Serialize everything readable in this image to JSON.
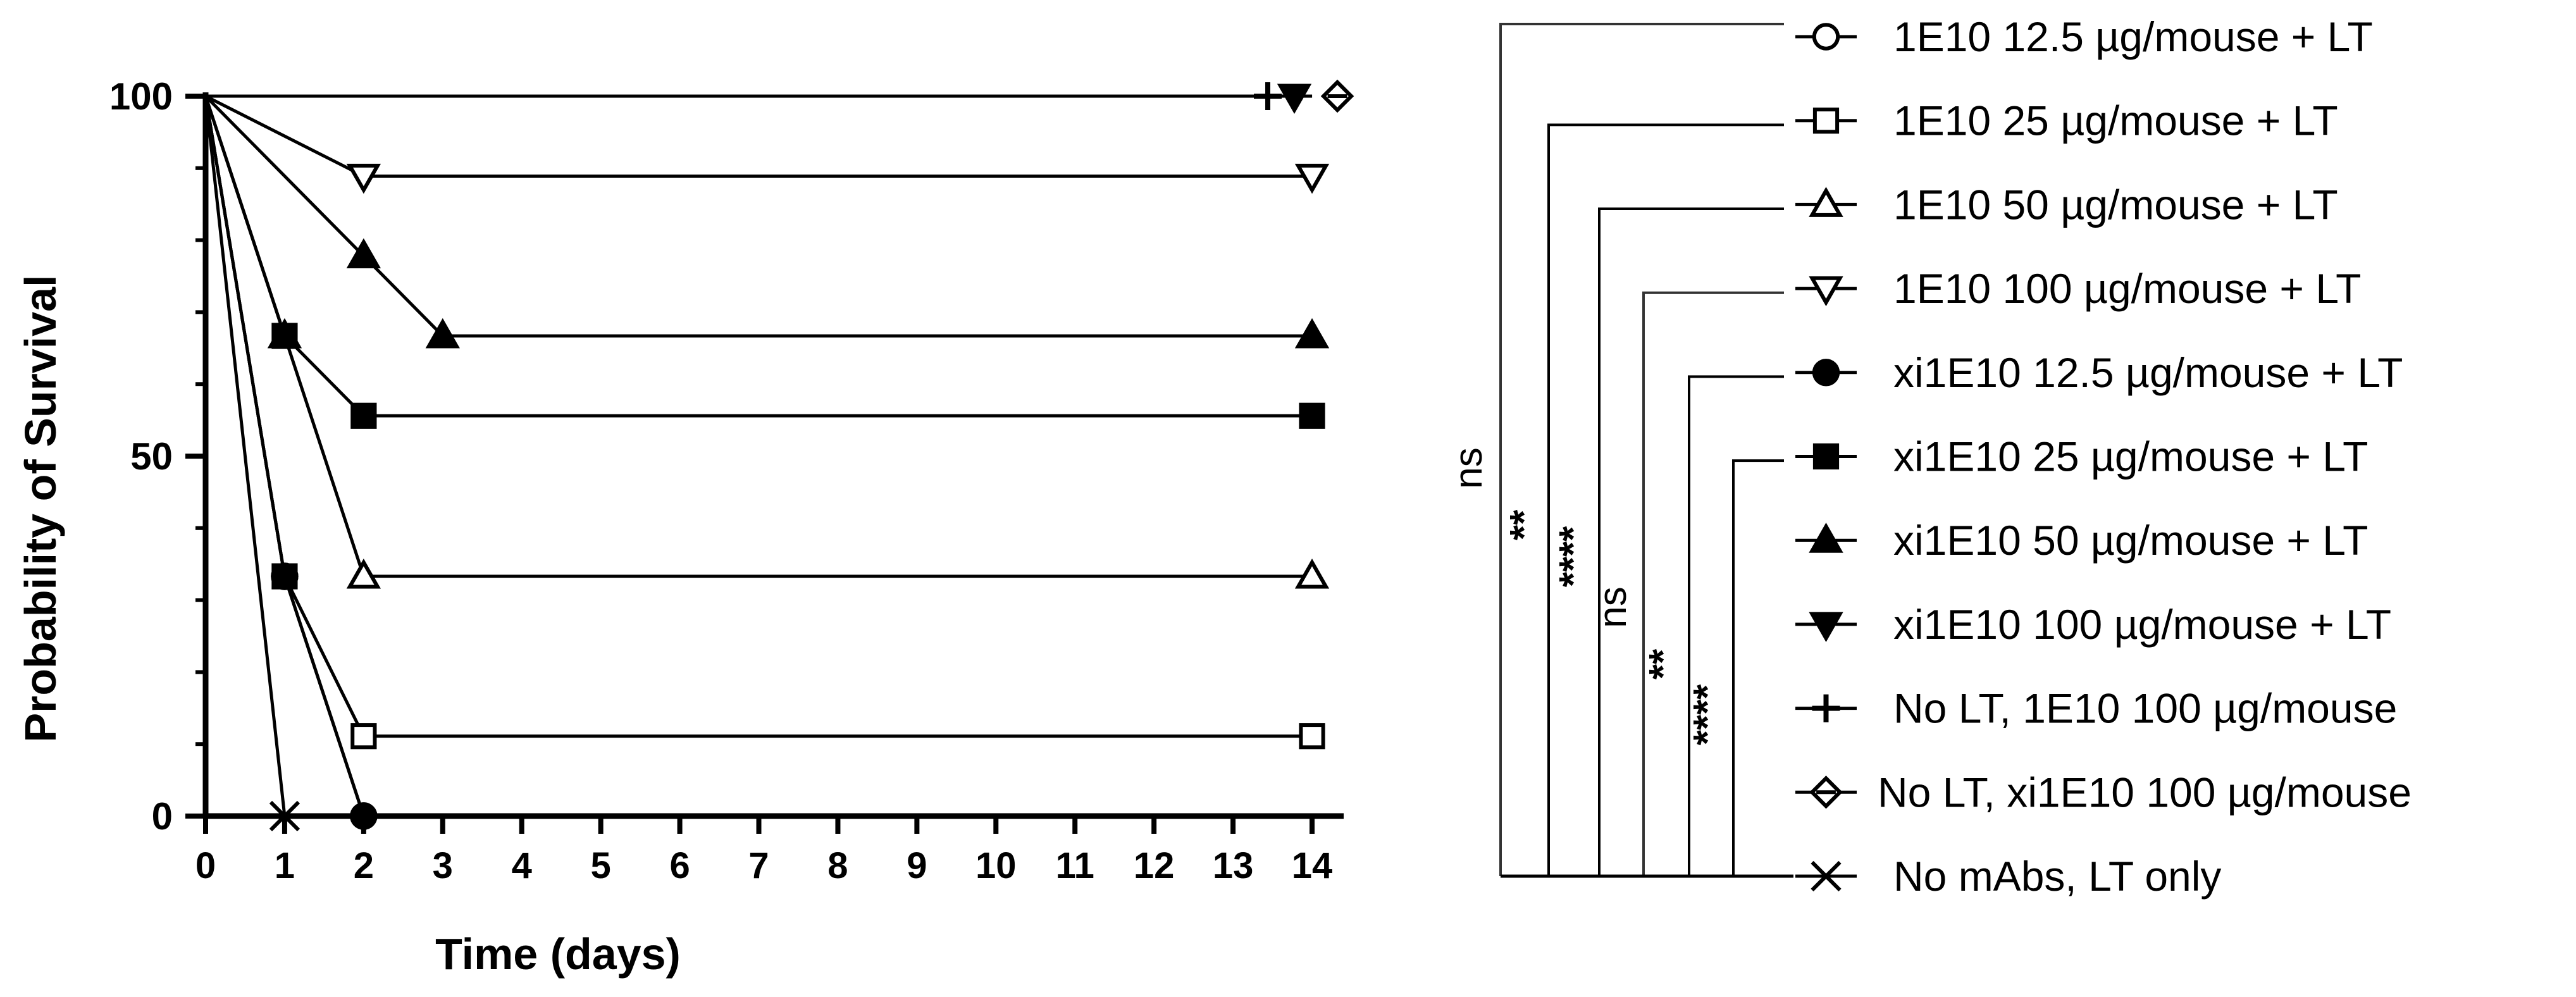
{
  "chart_data": {
    "type": "line",
    "step": true,
    "xlabel": "Time (days)",
    "ylabel": "Probability of Survival",
    "xlim": [
      0,
      14.4
    ],
    "ylim": [
      0,
      100
    ],
    "x_ticks": [
      0,
      1,
      2,
      3,
      4,
      5,
      6,
      7,
      8,
      9,
      10,
      11,
      12,
      13,
      14
    ],
    "y_ticks": [
      0,
      50,
      100
    ],
    "grid": false,
    "legend_position": "right",
    "series": [
      {
        "name": "1E10 12.5 µg/mouse + LT",
        "marker": "circle-open",
        "points": [
          [
            0,
            100
          ],
          [
            1,
            33.3
          ],
          [
            2,
            0
          ]
        ]
      },
      {
        "name": "1E10 25 µg/mouse + LT",
        "marker": "square-open",
        "points": [
          [
            0,
            100
          ],
          [
            1,
            33.3
          ],
          [
            2,
            11.1
          ],
          [
            14,
            11.1
          ]
        ]
      },
      {
        "name": "1E10 50 µg/mouse + LT",
        "marker": "triangle-up-open",
        "points": [
          [
            0,
            100
          ],
          [
            1,
            66.7
          ],
          [
            2,
            33.3
          ],
          [
            14,
            33.3
          ]
        ]
      },
      {
        "name": "1E10 100 µg/mouse + LT",
        "marker": "triangle-down-open",
        "points": [
          [
            0,
            100
          ],
          [
            2,
            88.9
          ],
          [
            14,
            88.9
          ]
        ]
      },
      {
        "name": "xi1E10 12.5 µg/mouse + LT",
        "marker": "circle-filled",
        "points": [
          [
            0,
            100
          ],
          [
            1,
            33.3
          ],
          [
            2,
            0
          ]
        ]
      },
      {
        "name": "xi1E10 25 µg/mouse + LT",
        "marker": "square-filled",
        "points": [
          [
            0,
            100
          ],
          [
            1,
            66.7
          ],
          [
            2,
            55.6
          ],
          [
            14,
            55.6
          ]
        ]
      },
      {
        "name": "xi1E10 50 µg/mouse + LT",
        "marker": "triangle-up-filled",
        "points": [
          [
            0,
            100
          ],
          [
            2,
            77.8
          ],
          [
            3,
            66.7
          ],
          [
            14,
            66.7
          ]
        ]
      },
      {
        "name": "xi1E10 100 µg/mouse + LT",
        "marker": "triangle-down-filled",
        "points": [
          [
            0,
            100
          ],
          [
            14,
            100
          ]
        ]
      },
      {
        "name": "No LT, 1E10 100 µg/mouse",
        "marker": "plus",
        "points": [
          [
            0,
            100
          ],
          [
            14,
            100
          ]
        ]
      },
      {
        "name": "No LT, xi1E10 100 µg/mouse",
        "marker": "diamond-open",
        "points": [
          [
            0,
            100
          ],
          [
            14,
            100
          ]
        ]
      },
      {
        "name": "No mAbs, LT only",
        "marker": "x",
        "points": [
          [
            0,
            100
          ],
          [
            1,
            0
          ]
        ]
      }
    ],
    "significance": [
      {
        "label": "ns",
        "from": 0,
        "to": 1
      },
      {
        "label": "**",
        "from": 0,
        "to": 2
      },
      {
        "label": "****",
        "from": 0,
        "to": 3
      },
      {
        "label": "ns",
        "from": 0,
        "to": 4
      },
      {
        "label": "**",
        "from": 0,
        "to": 5
      },
      {
        "label": "****",
        "from": 0,
        "to": 6
      }
    ]
  }
}
